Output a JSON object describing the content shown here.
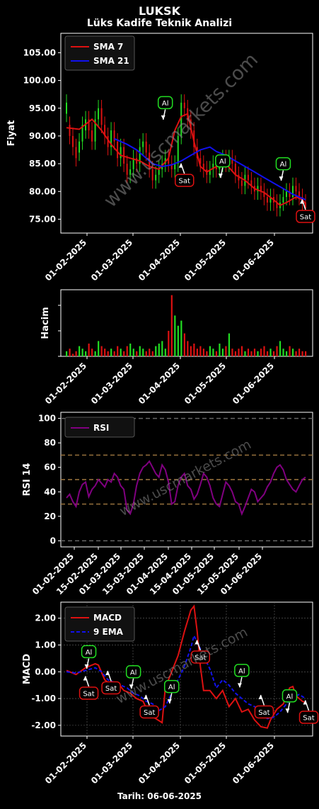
{
  "header": {
    "title": "LUKSK",
    "subtitle": "Lüks Kadife Teknik Analizi"
  },
  "footer": {
    "date_label": "Tarih: 06-06-2025"
  },
  "watermark": "www.uscmarkets.com",
  "colors": {
    "up": "#22dd22",
    "down": "#dd1111",
    "sma7": "#dd1111",
    "sma21": "#1111ee",
    "rsi": "#800080",
    "macd": "#dd1111",
    "ema9": "#1111ee"
  },
  "chart_data": [
    {
      "type": "line",
      "panel": "price",
      "ylabel": "Fiyat",
      "ylim": [
        72.5,
        108.5
      ],
      "yticks": [
        "75.00",
        "80.00",
        "85.00",
        "90.00",
        "95.00",
        "100.00",
        "105.00"
      ],
      "xticks": [
        "01-02-2025",
        "01-03-2025",
        "01-04-2025",
        "01-05-2025",
        "01-06-2025"
      ],
      "legend": [
        "SMA 7",
        "SMA 21"
      ],
      "legend_position": "top-left",
      "ohlc": [
        [
          1,
          94,
          96
        ],
        [
          2,
          92,
          90
        ],
        [
          3,
          90,
          88
        ],
        [
          4,
          88,
          86
        ],
        [
          5,
          87,
          89
        ],
        [
          6,
          89,
          92
        ],
        [
          7,
          91,
          93
        ],
        [
          8,
          93,
          91
        ],
        [
          9,
          91,
          89
        ],
        [
          10,
          89,
          93
        ],
        [
          11,
          93,
          95
        ],
        [
          12,
          95,
          92
        ],
        [
          13,
          92,
          90
        ],
        [
          14,
          90,
          88
        ],
        [
          15,
          88,
          91
        ],
        [
          16,
          91,
          89
        ],
        [
          17,
          89,
          86
        ],
        [
          18,
          86,
          88
        ],
        [
          19,
          88,
          85
        ],
        [
          20,
          85,
          83
        ],
        [
          21,
          83,
          84
        ],
        [
          22,
          84,
          86
        ],
        [
          23,
          86,
          85
        ],
        [
          24,
          85,
          88
        ],
        [
          25,
          88,
          89
        ],
        [
          26,
          89,
          87
        ],
        [
          27,
          87,
          84
        ],
        [
          28,
          84,
          82
        ],
        [
          29,
          82,
          83
        ],
        [
          30,
          83,
          84
        ],
        [
          31,
          84,
          85
        ],
        [
          32,
          85,
          86
        ],
        [
          33,
          86,
          85
        ],
        [
          34,
          85,
          84
        ],
        [
          35,
          84,
          85
        ],
        [
          36,
          85,
          90
        ],
        [
          37,
          90,
          96
        ],
        [
          38,
          96,
          95
        ],
        [
          39,
          95,
          93
        ],
        [
          40,
          93,
          91
        ],
        [
          41,
          91,
          88
        ],
        [
          42,
          88,
          86
        ],
        [
          43,
          86,
          85
        ],
        [
          44,
          85,
          84
        ],
        [
          45,
          84,
          83
        ],
        [
          46,
          83,
          84
        ],
        [
          47,
          84,
          85
        ],
        [
          48,
          85,
          84
        ],
        [
          49,
          84,
          85
        ],
        [
          50,
          85,
          86
        ],
        [
          51,
          86,
          85
        ],
        [
          52,
          85,
          86
        ],
        [
          53,
          86,
          85
        ],
        [
          54,
          85,
          83
        ],
        [
          55,
          83,
          82
        ],
        [
          56,
          82,
          81
        ],
        [
          57,
          81,
          83
        ],
        [
          58,
          83,
          82
        ],
        [
          59,
          82,
          81
        ],
        [
          60,
          81,
          80
        ],
        [
          61,
          80,
          81
        ],
        [
          62,
          81,
          80
        ],
        [
          63,
          80,
          79
        ],
        [
          64,
          79,
          78
        ],
        [
          65,
          78,
          79
        ],
        [
          66,
          79,
          78
        ],
        [
          67,
          78,
          77
        ],
        [
          68,
          77,
          78
        ],
        [
          69,
          78,
          79
        ],
        [
          70,
          79,
          80
        ],
        [
          71,
          80,
          79
        ],
        [
          72,
          79,
          81
        ],
        [
          73,
          81,
          80
        ],
        [
          74,
          80,
          79
        ],
        [
          75,
          79,
          78
        ],
        [
          76,
          78,
          77
        ]
      ],
      "sma7_points": [
        [
          1,
          91.5
        ],
        [
          5,
          91.2
        ],
        [
          9,
          93
        ],
        [
          12,
          91
        ],
        [
          15,
          88.5
        ],
        [
          18,
          86.5
        ],
        [
          21,
          86
        ],
        [
          24,
          85.5
        ],
        [
          27,
          84.5
        ],
        [
          30,
          84
        ],
        [
          33,
          86
        ],
        [
          35,
          91
        ],
        [
          37,
          93.5
        ],
        [
          39,
          94
        ],
        [
          41,
          89
        ],
        [
          43,
          84.5
        ],
        [
          45,
          83.5
        ],
        [
          48,
          84.5
        ],
        [
          51,
          85
        ],
        [
          54,
          83
        ],
        [
          57,
          82
        ],
        [
          60,
          80.5
        ],
        [
          63,
          79.8
        ],
        [
          66,
          78.5
        ],
        [
          68,
          77.5
        ],
        [
          70,
          78
        ],
        [
          73,
          79
        ],
        [
          75,
          78.5
        ],
        [
          76,
          77.8
        ]
      ],
      "sma21_points": [
        [
          16,
          89.5
        ],
        [
          20,
          88.5
        ],
        [
          23,
          87.5
        ],
        [
          26,
          86
        ],
        [
          28,
          85
        ],
        [
          31,
          84.5
        ],
        [
          34,
          84.8
        ],
        [
          37,
          85.5
        ],
        [
          40,
          86.5
        ],
        [
          43,
          87.5
        ],
        [
          46,
          88
        ],
        [
          48,
          87.2
        ],
        [
          51,
          86.5
        ],
        [
          54,
          85.5
        ],
        [
          57,
          84.5
        ],
        [
          60,
          83.5
        ],
        [
          63,
          82.5
        ],
        [
          66,
          81.5
        ],
        [
          69,
          80.5
        ],
        [
          72,
          79.5
        ],
        [
          74,
          79
        ],
        [
          76,
          78.5
        ]
      ],
      "signals": [
        {
          "label": "Al",
          "x": 32,
          "y": 96
        },
        {
          "label": "Sat",
          "x": 38,
          "y": 82
        },
        {
          "label": "Al",
          "x": 50,
          "y": 85.5
        },
        {
          "label": "Al",
          "x": 69,
          "y": 85
        },
        {
          "label": "Sat",
          "x": 76,
          "y": 75.5
        }
      ]
    },
    {
      "type": "bar",
      "panel": "volume",
      "ylabel": "Hacim",
      "xticks": [
        "01-02-2025",
        "01-03-2025",
        "01-04-2025",
        "01-05-2025",
        "01-06-2025"
      ],
      "volumes": [
        2,
        3,
        1,
        2,
        4,
        3,
        2,
        5,
        3,
        2,
        6,
        4,
        3,
        2,
        3,
        2,
        4,
        3,
        2,
        4,
        5,
        3,
        2,
        4,
        3,
        2,
        3,
        2,
        4,
        5,
        6,
        3,
        10,
        24,
        16,
        12,
        14,
        9,
        6,
        4,
        5,
        3,
        4,
        3,
        2,
        4,
        3,
        2,
        5,
        3,
        4,
        9,
        3,
        2,
        3,
        4,
        2,
        3,
        2,
        3,
        2,
        3,
        4,
        2,
        3,
        2,
        4,
        6,
        3,
        2,
        4,
        3,
        2,
        3,
        2,
        2
      ]
    },
    {
      "type": "line",
      "panel": "rsi",
      "ylabel": "RSI 14",
      "ylim": [
        -5,
        105
      ],
      "yticks": [
        "0",
        "20",
        "40",
        "60",
        "80",
        "100"
      ],
      "xticks": [
        "01-02-2025",
        "15-02-2025",
        "01-03-2025",
        "15-03-2025",
        "01-04-2025",
        "15-04-2025",
        "01-05-2025",
        "15-05-2025",
        "01-06-2025"
      ],
      "legend": [
        "RSI"
      ],
      "legend_position": "top-left",
      "levels": [
        0,
        30,
        50,
        70,
        100
      ],
      "values": [
        35,
        38,
        32,
        28,
        40,
        46,
        48,
        36,
        42,
        45,
        50,
        47,
        44,
        50,
        48,
        55,
        52,
        45,
        42,
        25,
        22,
        30,
        45,
        55,
        60,
        62,
        65,
        60,
        55,
        52,
        62,
        58,
        48,
        30,
        32,
        45,
        52,
        55,
        45,
        42,
        34,
        38,
        46,
        55,
        52,
        45,
        35,
        30,
        28,
        38,
        48,
        45,
        40,
        32,
        30,
        22,
        28,
        35,
        42,
        40,
        32,
        35,
        38,
        44,
        48,
        55,
        60,
        62,
        58,
        50,
        46,
        42,
        40,
        45,
        50,
        52
      ]
    },
    {
      "type": "line",
      "panel": "macd",
      "ylabel": "MACD",
      "ylim": [
        -2.4,
        2.6
      ],
      "yticks": [
        "-2.00",
        "-1.00",
        "0.00",
        "1.00",
        "2.00"
      ],
      "xticks": [
        "01-02-2025",
        "01-03-2025",
        "01-04-2025",
        "01-05-2025",
        "01-06-2025"
      ],
      "legend": [
        "MACD",
        "9 EMA"
      ],
      "legend_position": "top-left",
      "macd_points": [
        [
          1,
          0.05
        ],
        [
          4,
          -0.1
        ],
        [
          7,
          0.15
        ],
        [
          10,
          0.3
        ],
        [
          11,
          0.25
        ],
        [
          13,
          -0.3
        ],
        [
          15,
          -0.5
        ],
        [
          17,
          -0.4
        ],
        [
          19,
          -0.7
        ],
        [
          21,
          -0.8
        ],
        [
          23,
          -1.0
        ],
        [
          25,
          -1.1
        ],
        [
          27,
          -1.6
        ],
        [
          29,
          -1.75
        ],
        [
          31,
          -1.9
        ],
        [
          32,
          -0.6
        ],
        [
          34,
          0.0
        ],
        [
          36,
          0.6
        ],
        [
          38,
          1.5
        ],
        [
          40,
          2.3
        ],
        [
          41,
          2.45
        ],
        [
          42,
          1.5
        ],
        [
          43,
          0.2
        ],
        [
          44,
          -0.7
        ],
        [
          46,
          -0.7
        ],
        [
          48,
          -1.0
        ],
        [
          50,
          -0.7
        ],
        [
          52,
          -1.3
        ],
        [
          54,
          -1.0
        ],
        [
          56,
          -1.5
        ],
        [
          58,
          -1.4
        ],
        [
          60,
          -1.8
        ],
        [
          62,
          -2.05
        ],
        [
          64,
          -2.1
        ],
        [
          65,
          -1.8
        ],
        [
          67,
          -1.4
        ],
        [
          69,
          -1.2
        ],
        [
          71,
          -0.6
        ],
        [
          72,
          -0.55
        ],
        [
          73,
          -0.9
        ],
        [
          75,
          -1.1
        ],
        [
          76,
          -1.15
        ]
      ],
      "ema_points": [
        [
          1,
          0.0
        ],
        [
          4,
          -0.05
        ],
        [
          7,
          0.05
        ],
        [
          10,
          0.15
        ],
        [
          12,
          0.0
        ],
        [
          14,
          -0.3
        ],
        [
          16,
          -0.4
        ],
        [
          18,
          -0.5
        ],
        [
          20,
          -0.6
        ],
        [
          22,
          -0.8
        ],
        [
          24,
          -0.9
        ],
        [
          26,
          -1.1
        ],
        [
          28,
          -1.2
        ],
        [
          30,
          -1.45
        ],
        [
          32,
          -1.3
        ],
        [
          34,
          -0.8
        ],
        [
          36,
          -0.3
        ],
        [
          38,
          0.2
        ],
        [
          40,
          0.9
        ],
        [
          41,
          1.35
        ],
        [
          42,
          1.1
        ],
        [
          44,
          0.6
        ],
        [
          46,
          0.1
        ],
        [
          48,
          -0.6
        ],
        [
          50,
          -0.3
        ],
        [
          52,
          -0.5
        ],
        [
          54,
          -0.8
        ],
        [
          56,
          -1.0
        ],
        [
          58,
          -1.2
        ],
        [
          60,
          -1.3
        ],
        [
          62,
          -1.5
        ],
        [
          64,
          -1.75
        ],
        [
          66,
          -1.7
        ],
        [
          68,
          -1.5
        ],
        [
          70,
          -1.2
        ],
        [
          72,
          -0.95
        ],
        [
          74,
          -0.85
        ],
        [
          76,
          -1.0
        ]
      ],
      "signals": [
        {
          "label": "Al",
          "x": 8,
          "y": 0.75
        },
        {
          "label": "Sat",
          "x": 8,
          "y": -0.8
        },
        {
          "label": "Sat",
          "x": 15,
          "y": -0.6
        },
        {
          "label": "Al",
          "x": 22,
          "y": 0.0
        },
        {
          "label": "Sat",
          "x": 27,
          "y": -1.5
        },
        {
          "label": "Al",
          "x": 34,
          "y": -0.55
        },
        {
          "label": "Sat",
          "x": 43,
          "y": 0.55
        },
        {
          "label": "Al",
          "x": 56,
          "y": 0.05
        },
        {
          "label": "Sat",
          "x": 63,
          "y": -1.5
        },
        {
          "label": "Al",
          "x": 71,
          "y": -0.9
        },
        {
          "label": "Sat",
          "x": 77,
          "y": -1.7
        }
      ]
    }
  ]
}
